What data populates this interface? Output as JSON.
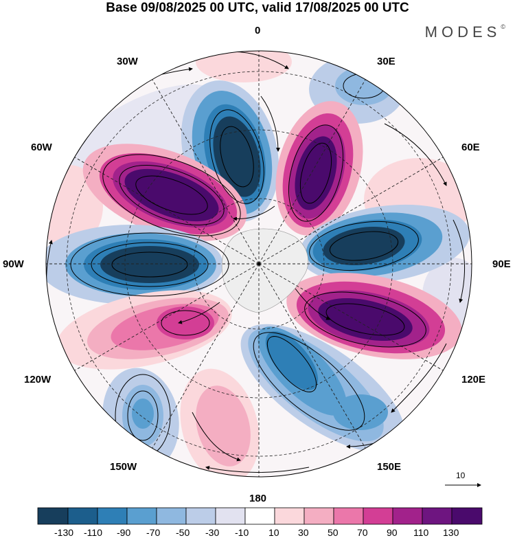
{
  "title": "Base 09/08/2025 00 UTC, valid 17/08/2025 00 UTC",
  "brand": "MODES",
  "brand_mark": "©",
  "longitude_labels": {
    "0": "0",
    "30E": "30E",
    "60E": "60E",
    "90E": "90E",
    "120E": "120E",
    "150E": "150E",
    "180": "180",
    "150W": "150W",
    "120W": "120W",
    "90W": "90W",
    "60W": "60W",
    "30W": "30W"
  },
  "vector_key": {
    "label": "10"
  },
  "colorbar": {
    "ticks": [
      "-130",
      "-110",
      "-90",
      "-70",
      "-50",
      "-30",
      "-10",
      "10",
      "30",
      "50",
      "70",
      "90",
      "110",
      "130"
    ],
    "colors": [
      "#173e5c",
      "#1c5e8c",
      "#2e7fb6",
      "#5a9fd0",
      "#8fb8e0",
      "#bccde8",
      "#e2e2f0",
      "#ffffff",
      "#fbd8dc",
      "#f4aec2",
      "#eb77aa",
      "#d33e95",
      "#a2228b",
      "#6e1580",
      "#4a0a6c"
    ]
  },
  "colors": {
    "background": "#ffffff",
    "land": "#eeeeee",
    "grid": "#222222"
  }
}
